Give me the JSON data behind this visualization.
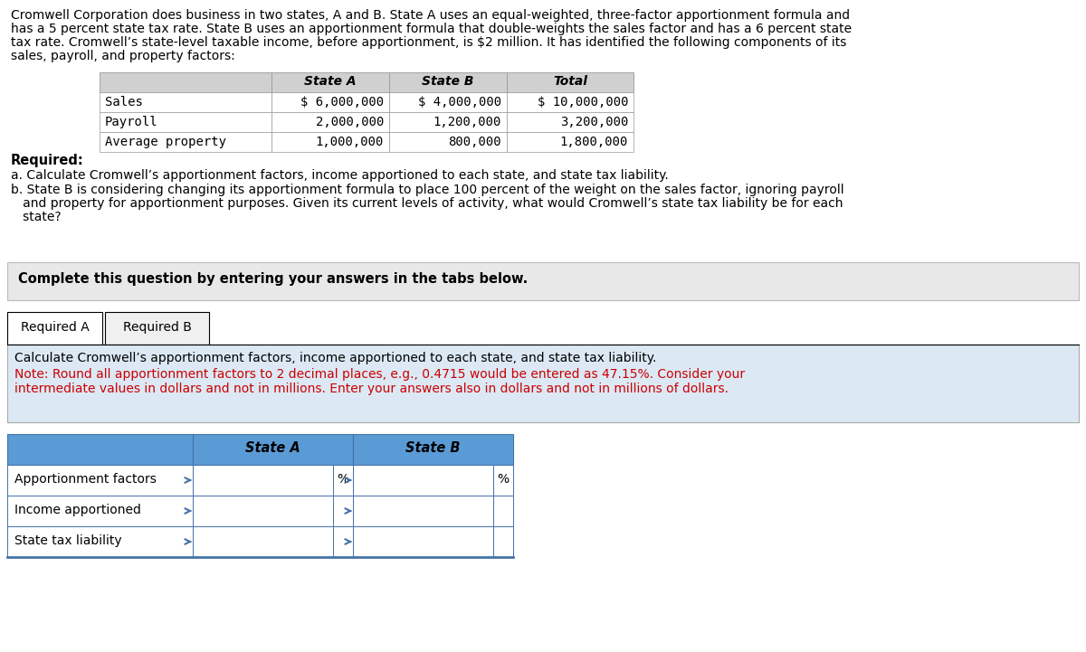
{
  "intro_lines": [
    "Cromwell Corporation does business in two states, A and B. State A uses an equal-weighted, three-factor apportionment formula and",
    "has a 5 percent state tax rate. State B uses an apportionment formula that double-weights the sales factor and has a 6 percent state",
    "tax rate. Cromwell’s state-level taxable income, before apportionment, is $2 million. It has identified the following components of its",
    "sales, payroll, and property factors:"
  ],
  "table1_col_labels": [
    "",
    "State A",
    "State B",
    "Total"
  ],
  "table1_rows": [
    [
      "Sales",
      "$ 6,000,000",
      "$ 4,000,000",
      "$ 10,000,000"
    ],
    [
      "Payroll",
      "2,000,000",
      "1,200,000",
      "3,200,000"
    ],
    [
      "Average property",
      "1,000,000",
      "800,000",
      "1,800,000"
    ]
  ],
  "table1_header_bg": "#d0d0d0",
  "required_label": "Required:",
  "req_a": "a. Calculate Cromwell’s apportionment factors, income apportioned to each state, and state tax liability.",
  "req_b_lines": [
    "b. State B is considering changing its apportionment formula to place 100 percent of the weight on the sales factor, ignoring payroll",
    "   and property for apportionment purposes. Given its current levels of activity, what would Cromwell’s state tax liability be for each",
    "   state?"
  ],
  "complete_text": "Complete this question by entering your answers in the tabs below.",
  "complete_bg": "#e8e8e8",
  "tab1_label": "Required A",
  "tab2_label": "Required B",
  "instruction_text": "Calculate Cromwell’s apportionment factors, income apportioned to each state, and state tax liability.",
  "note_lines": [
    "Note: Round all apportionment factors to 2 decimal places, e.g., 0.4715 would be entered as 47.15%. Consider your",
    "intermediate values in dollars and not in millions. Enter your answers also in dollars and not in millions of dollars."
  ],
  "instruction_bg": "#dce9f5",
  "note_color": "#cc0000",
  "table2_row_labels": [
    "Apportionment factors",
    "Income apportioned",
    "State tax liability"
  ],
  "table2_header_bg": "#5b9bd5",
  "arrow_color": "#4472a8",
  "border_color": "#4472a8"
}
